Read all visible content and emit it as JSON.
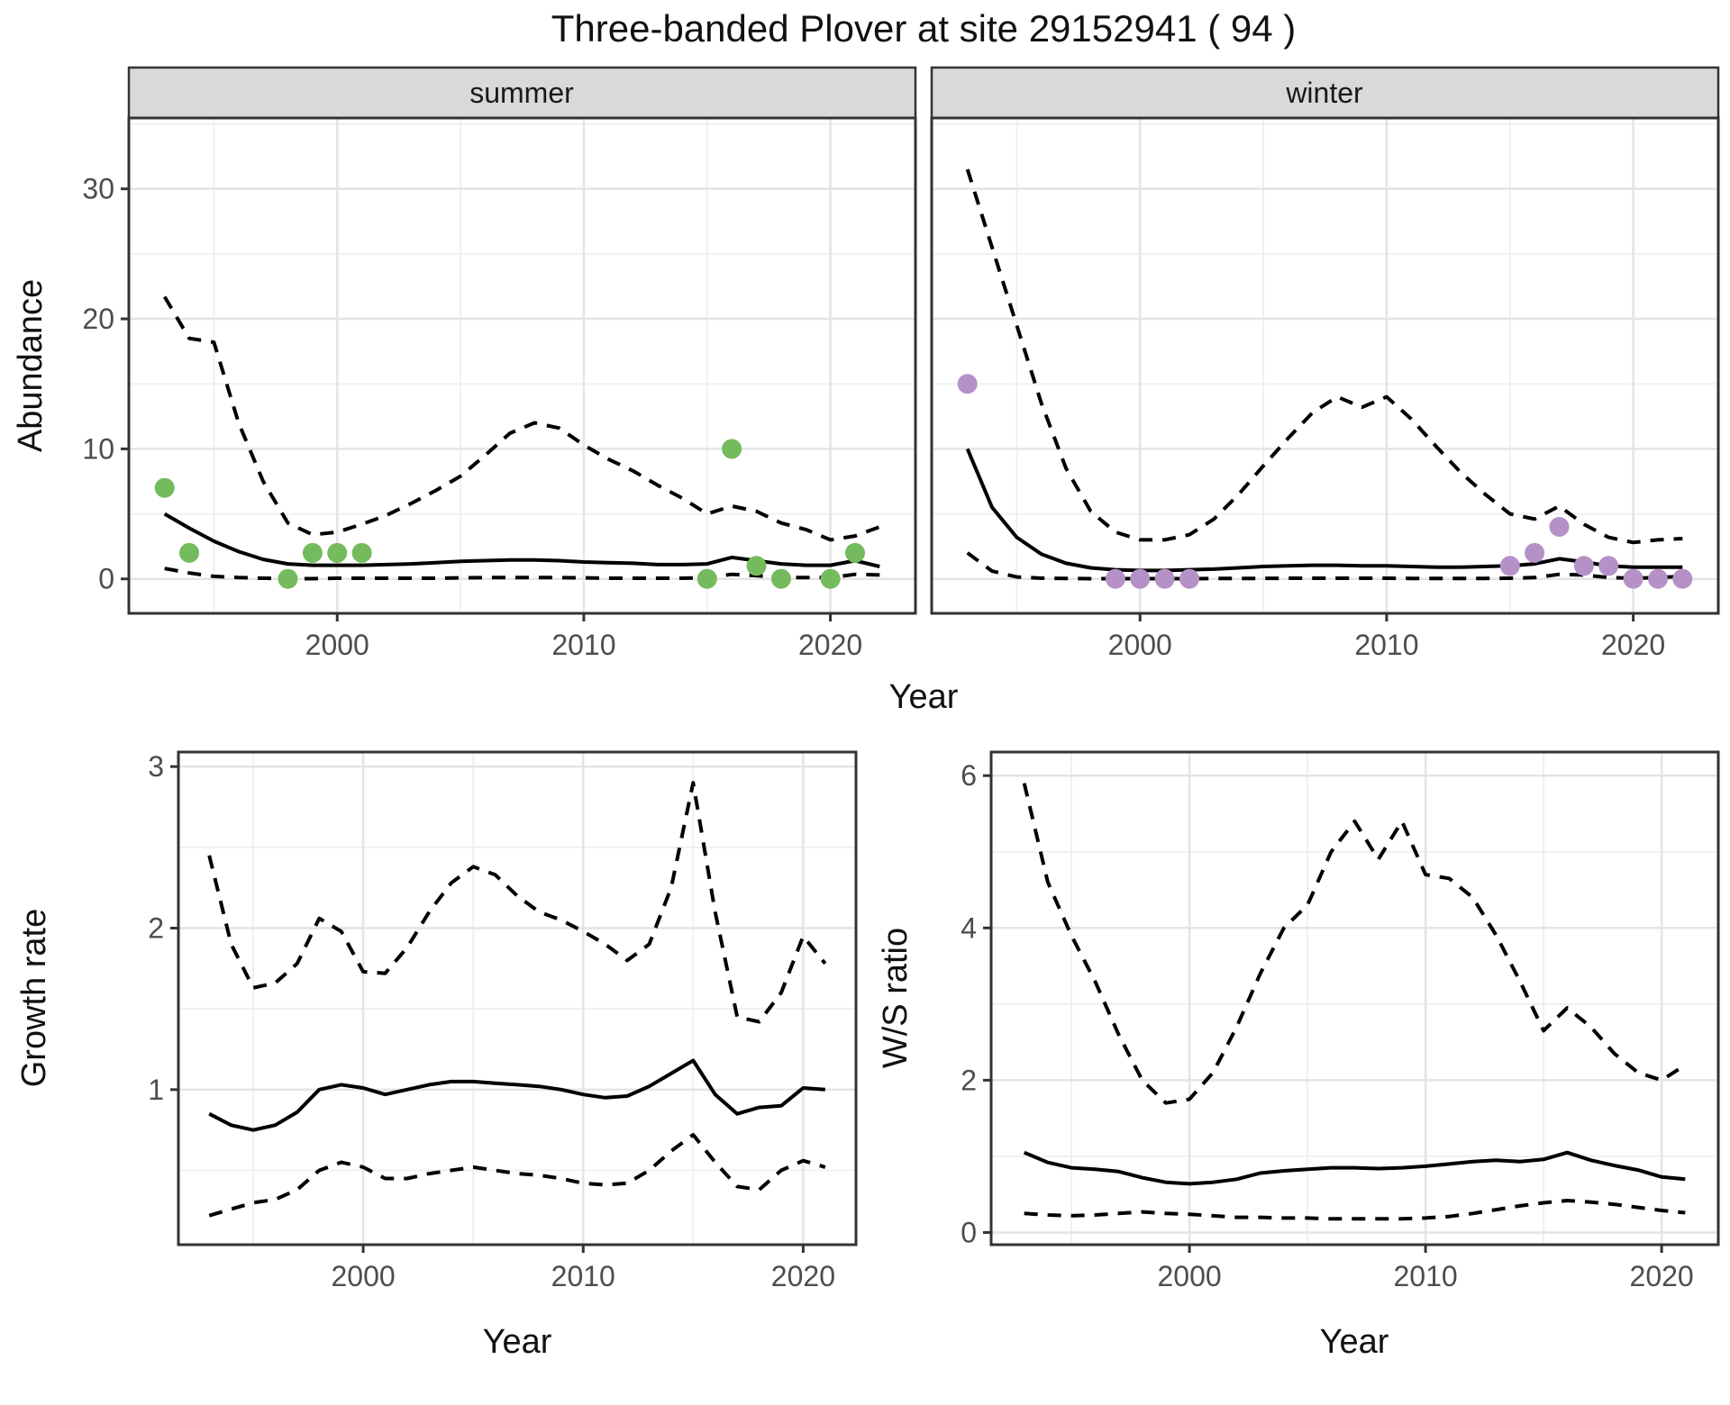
{
  "title": "Three-banded Plover at site 29152941 ( 94 )",
  "facets": {
    "summer_label": "summer",
    "winter_label": "winter"
  },
  "axes": {
    "abundance_label": "Abundance",
    "year_label": "Year",
    "growth_label": "Growth rate",
    "ws_label": "W/S ratio"
  },
  "colors": {
    "summer_point": "#74BB5D",
    "winter_point": "#B591C7",
    "line": "#000000",
    "grid_major": "#E4E4E4",
    "grid_minor": "#F0F0F0",
    "strip_fill": "#D9D9D9",
    "panel_border": "#333333",
    "tick_mark": "#333333"
  },
  "chart_data": [
    {
      "type": "line",
      "panel": "summer",
      "facet_label": "summer",
      "xlabel": "Year",
      "ylabel": "Abundance",
      "xlim": [
        1991.55,
        2023.45
      ],
      "ylim": [
        -2.65,
        35.45
      ],
      "xticks": [
        2000,
        2010,
        2020
      ],
      "xminor": [
        1995,
        2005,
        2015
      ],
      "yticks": [
        0,
        10,
        20,
        30
      ],
      "yminor": [
        5,
        15,
        25,
        35
      ],
      "x": [
        1993,
        1994,
        1995,
        1996,
        1997,
        1998,
        1999,
        2000,
        2001,
        2002,
        2003,
        2004,
        2005,
        2006,
        2007,
        2008,
        2009,
        2010,
        2011,
        2012,
        2013,
        2014,
        2015,
        2016,
        2017,
        2018,
        2019,
        2020,
        2021,
        2022
      ],
      "series": [
        {
          "name": "mean",
          "style": "solid",
          "values": [
            5.0,
            3.9,
            2.9,
            2.1,
            1.5,
            1.15,
            1.05,
            1.05,
            1.05,
            1.1,
            1.15,
            1.25,
            1.35,
            1.4,
            1.45,
            1.45,
            1.4,
            1.3,
            1.25,
            1.2,
            1.1,
            1.1,
            1.15,
            1.65,
            1.4,
            1.15,
            1.05,
            1.05,
            1.4,
            0.95
          ]
        },
        {
          "name": "upper_ci",
          "style": "dashed",
          "values": [
            21.7,
            18.5,
            18.2,
            12.0,
            7.5,
            4.3,
            3.4,
            3.6,
            4.2,
            4.9,
            5.8,
            6.8,
            7.9,
            9.5,
            11.2,
            12.0,
            11.6,
            10.3,
            9.2,
            8.3,
            7.2,
            6.2,
            5.0,
            5.6,
            5.2,
            4.3,
            3.8,
            3.0,
            3.3,
            4.0
          ]
        },
        {
          "name": "lower_ci",
          "style": "dashed",
          "values": [
            0.8,
            0.45,
            0.2,
            0.1,
            0.05,
            0.02,
            0.02,
            0.05,
            0.05,
            0.05,
            0.05,
            0.05,
            0.08,
            0.1,
            0.1,
            0.1,
            0.1,
            0.08,
            0.05,
            0.05,
            0.05,
            0.05,
            0.1,
            0.35,
            0.25,
            0.1,
            0.1,
            0.1,
            0.35,
            0.3
          ]
        }
      ],
      "points": {
        "name": "observed_counts",
        "color": "#74BB5D",
        "data": [
          [
            1993,
            7
          ],
          [
            1994,
            2
          ],
          [
            1998,
            0
          ],
          [
            1999,
            2
          ],
          [
            2000,
            2
          ],
          [
            2001,
            2
          ],
          [
            2015,
            0
          ],
          [
            2016,
            10
          ],
          [
            2017,
            1
          ],
          [
            2018,
            0
          ],
          [
            2020,
            0
          ],
          [
            2021,
            2
          ]
        ]
      }
    },
    {
      "type": "line",
      "panel": "winter",
      "facet_label": "winter",
      "xlabel": "Year",
      "ylabel": "Abundance",
      "xlim": [
        1991.55,
        2023.45
      ],
      "ylim": [
        -2.65,
        35.45
      ],
      "xticks": [
        2000,
        2010,
        2020
      ],
      "xminor": [
        1995,
        2005,
        2015
      ],
      "yticks": [
        0,
        10,
        20,
        30
      ],
      "yminor": [
        5,
        15,
        25,
        35
      ],
      "x": [
        1993,
        1994,
        1995,
        1996,
        1997,
        1998,
        1999,
        2000,
        2001,
        2002,
        2003,
        2004,
        2005,
        2006,
        2007,
        2008,
        2009,
        2010,
        2011,
        2012,
        2013,
        2014,
        2015,
        2016,
        2017,
        2018,
        2019,
        2020,
        2021,
        2022
      ],
      "series": [
        {
          "name": "mean",
          "style": "solid",
          "values": [
            10.0,
            5.5,
            3.2,
            1.9,
            1.2,
            0.85,
            0.7,
            0.65,
            0.65,
            0.7,
            0.75,
            0.85,
            0.95,
            1.0,
            1.05,
            1.05,
            1.0,
            1.0,
            0.95,
            0.9,
            0.9,
            0.95,
            1.0,
            1.15,
            1.55,
            1.3,
            1.0,
            0.9,
            0.9,
            0.9
          ]
        },
        {
          "name": "upper_ci",
          "style": "dashed",
          "values": [
            31.5,
            25.5,
            19.5,
            13.5,
            8.5,
            5.2,
            3.6,
            3.0,
            3.0,
            3.4,
            4.6,
            6.5,
            8.7,
            10.8,
            12.8,
            14.0,
            13.2,
            14.0,
            12.3,
            10.2,
            8.2,
            6.5,
            5.0,
            4.6,
            5.6,
            4.2,
            3.2,
            2.8,
            3.0,
            3.1
          ]
        },
        {
          "name": "lower_ci",
          "style": "dashed",
          "values": [
            2.0,
            0.6,
            0.15,
            0.05,
            0.03,
            0.02,
            0.02,
            0.02,
            0.02,
            0.02,
            0.03,
            0.03,
            0.04,
            0.05,
            0.05,
            0.05,
            0.05,
            0.05,
            0.04,
            0.03,
            0.03,
            0.04,
            0.05,
            0.1,
            0.35,
            0.3,
            0.1,
            0.05,
            0.1,
            0.2
          ]
        }
      ],
      "points": {
        "name": "observed_counts",
        "color": "#B591C7",
        "data": [
          [
            1993,
            15
          ],
          [
            1999,
            0
          ],
          [
            2000,
            0
          ],
          [
            2001,
            0
          ],
          [
            2002,
            0
          ],
          [
            2015,
            1
          ],
          [
            2016,
            2
          ],
          [
            2017,
            4
          ],
          [
            2018,
            1
          ],
          [
            2019,
            1
          ],
          [
            2020,
            0
          ],
          [
            2021,
            0
          ],
          [
            2022,
            0
          ]
        ]
      }
    },
    {
      "type": "line",
      "panel": "growth",
      "facet_label": "",
      "xlabel": "Year",
      "ylabel": "Growth rate",
      "xlim": [
        1991.6,
        2022.4
      ],
      "ylim": [
        0.04,
        3.09
      ],
      "xticks": [
        2000,
        2010,
        2020
      ],
      "xminor": [
        1995,
        2005,
        2015
      ],
      "yticks": [
        1,
        2,
        3
      ],
      "yminor": [
        0.5,
        1.5,
        2.5
      ],
      "x": [
        1993,
        1994,
        1995,
        1996,
        1997,
        1998,
        1999,
        2000,
        2001,
        2002,
        2003,
        2004,
        2005,
        2006,
        2007,
        2008,
        2009,
        2010,
        2011,
        2012,
        2013,
        2014,
        2015,
        2016,
        2017,
        2018,
        2019,
        2020,
        2021
      ],
      "series": [
        {
          "name": "mean",
          "style": "solid",
          "values": [
            0.85,
            0.78,
            0.75,
            0.78,
            0.86,
            1.0,
            1.03,
            1.01,
            0.97,
            1.0,
            1.03,
            1.05,
            1.05,
            1.04,
            1.03,
            1.02,
            1.0,
            0.97,
            0.95,
            0.96,
            1.02,
            1.1,
            1.18,
            0.97,
            0.85,
            0.89,
            0.9,
            1.01,
            1.0
          ]
        },
        {
          "name": "upper_ci",
          "style": "dashed",
          "values": [
            2.45,
            1.9,
            1.63,
            1.66,
            1.78,
            2.06,
            1.98,
            1.73,
            1.72,
            1.88,
            2.1,
            2.28,
            2.38,
            2.33,
            2.2,
            2.1,
            2.05,
            1.98,
            1.9,
            1.8,
            1.9,
            2.25,
            2.9,
            2.1,
            1.45,
            1.42,
            1.6,
            1.95,
            1.78
          ]
        },
        {
          "name": "lower_ci",
          "style": "dashed",
          "values": [
            0.22,
            0.26,
            0.3,
            0.32,
            0.38,
            0.5,
            0.55,
            0.52,
            0.45,
            0.45,
            0.48,
            0.5,
            0.52,
            0.5,
            0.48,
            0.47,
            0.45,
            0.42,
            0.41,
            0.42,
            0.5,
            0.62,
            0.72,
            0.55,
            0.4,
            0.38,
            0.5,
            0.56,
            0.52
          ]
        }
      ],
      "points": null
    },
    {
      "type": "line",
      "panel": "ws",
      "facet_label": "",
      "xlabel": "Year",
      "ylabel": "W/S ratio",
      "xlim": [
        1991.6,
        2022.4
      ],
      "ylim": [
        -0.16,
        6.31
      ],
      "xticks": [
        2000,
        2010,
        2020
      ],
      "xminor": [
        1995,
        2005,
        2015
      ],
      "yticks": [
        0,
        2,
        4,
        6
      ],
      "yminor": [
        1,
        3,
        5
      ],
      "x": [
        1993,
        1994,
        1995,
        1996,
        1997,
        1998,
        1999,
        2000,
        2001,
        2002,
        2003,
        2004,
        2005,
        2006,
        2007,
        2008,
        2009,
        2010,
        2011,
        2012,
        2013,
        2014,
        2015,
        2016,
        2017,
        2018,
        2019,
        2020,
        2021
      ],
      "series": [
        {
          "name": "mean",
          "style": "solid",
          "values": [
            1.05,
            0.92,
            0.85,
            0.83,
            0.8,
            0.72,
            0.66,
            0.64,
            0.66,
            0.7,
            0.78,
            0.81,
            0.83,
            0.85,
            0.85,
            0.84,
            0.85,
            0.87,
            0.9,
            0.93,
            0.95,
            0.93,
            0.96,
            1.05,
            0.95,
            0.88,
            0.82,
            0.73,
            0.7
          ]
        },
        {
          "name": "upper_ci",
          "style": "dashed",
          "values": [
            5.9,
            4.6,
            3.9,
            3.3,
            2.6,
            2.0,
            1.7,
            1.75,
            2.1,
            2.7,
            3.4,
            4.0,
            4.3,
            5.0,
            5.4,
            4.9,
            5.4,
            4.7,
            4.65,
            4.4,
            3.9,
            3.3,
            2.65,
            2.95,
            2.7,
            2.35,
            2.1,
            2.0,
            2.2
          ]
        },
        {
          "name": "lower_ci",
          "style": "dashed",
          "values": [
            0.25,
            0.23,
            0.22,
            0.23,
            0.25,
            0.27,
            0.25,
            0.24,
            0.22,
            0.2,
            0.2,
            0.19,
            0.19,
            0.18,
            0.18,
            0.18,
            0.18,
            0.19,
            0.21,
            0.25,
            0.3,
            0.35,
            0.39,
            0.42,
            0.4,
            0.37,
            0.33,
            0.29,
            0.26
          ]
        }
      ],
      "points": null
    }
  ]
}
